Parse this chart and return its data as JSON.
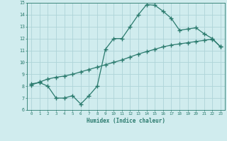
{
  "line1_x": [
    0,
    1,
    2,
    3,
    4,
    5,
    6,
    7,
    8,
    9,
    10,
    11,
    12,
    13,
    14,
    15,
    16,
    17,
    18,
    19,
    20,
    21,
    22,
    23
  ],
  "line1_y": [
    8.2,
    8.3,
    8.0,
    7.0,
    7.0,
    7.2,
    6.5,
    7.2,
    8.0,
    11.1,
    12.0,
    12.0,
    13.0,
    14.0,
    14.85,
    14.8,
    14.3,
    13.7,
    12.7,
    12.8,
    12.9,
    12.4,
    12.0,
    11.3
  ],
  "line2_x": [
    0,
    1,
    2,
    3,
    4,
    5,
    6,
    7,
    8,
    9,
    10,
    11,
    12,
    13,
    14,
    15,
    16,
    17,
    18,
    19,
    20,
    21,
    22,
    23
  ],
  "line2_y": [
    8.1,
    8.35,
    8.6,
    8.75,
    8.85,
    9.0,
    9.2,
    9.4,
    9.6,
    9.8,
    10.0,
    10.2,
    10.45,
    10.7,
    10.9,
    11.1,
    11.3,
    11.45,
    11.55,
    11.65,
    11.75,
    11.85,
    11.95,
    11.3
  ],
  "color": "#2a7a6d",
  "bg_color": "#d0ecee",
  "grid_color": "#aed4d8",
  "xlabel": "Humidex (Indice chaleur)",
  "xlim": [
    -0.5,
    23.5
  ],
  "ylim": [
    6,
    15
  ],
  "yticks": [
    6,
    7,
    8,
    9,
    10,
    11,
    12,
    13,
    14,
    15
  ],
  "xticks": [
    0,
    1,
    2,
    3,
    4,
    5,
    6,
    7,
    8,
    9,
    10,
    11,
    12,
    13,
    14,
    15,
    16,
    17,
    18,
    19,
    20,
    21,
    22,
    23
  ],
  "marker": "+",
  "markersize": 4,
  "linewidth": 0.9
}
